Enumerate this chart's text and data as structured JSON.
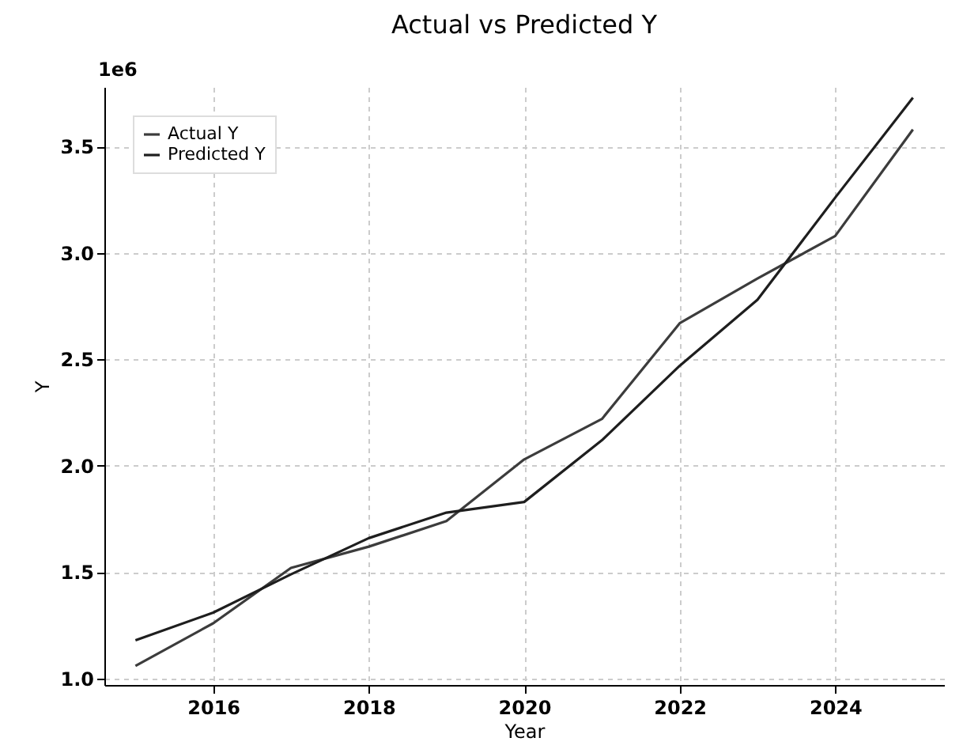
{
  "chart_data": {
    "type": "line",
    "title": "Actual vs Predicted Y",
    "xlabel": "Year",
    "ylabel": "Y",
    "annotations": [
      "1e6"
    ],
    "x": [
      2015,
      2016,
      2017,
      2018,
      2019,
      2020,
      2021,
      2022,
      2023,
      2024,
      2025
    ],
    "series": [
      {
        "name": "Actual Y",
        "color": "#3c3c3c",
        "values": [
          1.06,
          1.26,
          1.52,
          1.62,
          1.74,
          2.03,
          2.22,
          2.67,
          2.88,
          3.08,
          3.58
        ]
      },
      {
        "name": "Predicted Y",
        "color": "#1e1e1e",
        "values": [
          1.18,
          1.31,
          1.49,
          1.66,
          1.78,
          1.83,
          2.12,
          2.47,
          2.78,
          3.26,
          3.73
        ]
      }
    ],
    "xlim": [
      2014.6,
      2025.4
    ],
    "xticks": [
      2016,
      2018,
      2020,
      2022,
      2024
    ],
    "ylim": [
      0.97,
      3.78
    ],
    "yticks": [
      {
        "value": 1,
        "label": "1.0"
      },
      {
        "value": 1.5,
        "label": "1.5"
      },
      {
        "value": 2,
        "label": "2.0"
      },
      {
        "value": 2.5,
        "label": "2.5"
      },
      {
        "value": 3,
        "label": "3.0"
      },
      {
        "value": 3.5,
        "label": "3.5"
      }
    ],
    "grid": true,
    "legend": "top left",
    "line_style": "solid",
    "marker": "none"
  }
}
